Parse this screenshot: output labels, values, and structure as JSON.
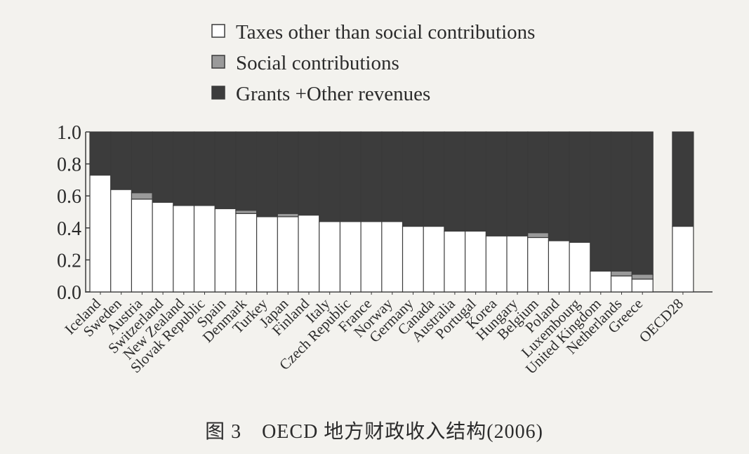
{
  "chart_data": {
    "type": "bar",
    "stacked": true,
    "caption": "图 3　OECD 地方财政收入结构(2006)",
    "ylim": [
      0,
      1.0
    ],
    "yticks": [
      "0.0",
      "0.2",
      "0.4",
      "0.6",
      "0.8",
      "1.0"
    ],
    "colors": {
      "taxes": "#ffffff",
      "social": "#9a9a9a",
      "grants": "#3c3c3c"
    },
    "categories": [
      "Iceland",
      "Sweden",
      "Austria",
      "Switzerland",
      "New Zealand",
      "Slovak Republic",
      "Spain",
      "Denmark",
      "Turkey",
      "Japan",
      "Finland",
      "Italy",
      "Czech Republic",
      "France",
      "Norway",
      "Germany",
      "Canada",
      "Australia",
      "Portugal",
      "Korea",
      "Hungary",
      "Belgium",
      "Poland",
      "Luxembourg",
      "United Kingdom",
      "Netherlands",
      "Greece",
      "OECD28"
    ],
    "series": [
      {
        "name": "Taxes other than social contributions",
        "key": "taxes",
        "values": [
          0.73,
          0.64,
          0.58,
          0.56,
          0.54,
          0.54,
          0.52,
          0.49,
          0.47,
          0.47,
          0.48,
          0.44,
          0.44,
          0.44,
          0.44,
          0.41,
          0.41,
          0.38,
          0.38,
          0.35,
          0.35,
          0.34,
          0.32,
          0.31,
          0.13,
          0.1,
          0.08,
          0.41
        ]
      },
      {
        "name": "Social contributions",
        "key": "social",
        "values": [
          0,
          0,
          0.04,
          0,
          0,
          0,
          0,
          0.02,
          0,
          0.02,
          0,
          0,
          0,
          0,
          0,
          0,
          0,
          0,
          0,
          0,
          0,
          0.03,
          0,
          0,
          0,
          0.03,
          0.03,
          0
        ]
      },
      {
        "name": "Grants +Other revenues",
        "key": "grants",
        "values": [
          0.27,
          0.36,
          0.38,
          0.44,
          0.46,
          0.46,
          0.48,
          0.49,
          0.53,
          0.51,
          0.52,
          0.56,
          0.56,
          0.56,
          0.56,
          0.59,
          0.59,
          0.62,
          0.62,
          0.65,
          0.65,
          0.63,
          0.68,
          0.69,
          0.87,
          0.87,
          0.89,
          0.59
        ]
      }
    ]
  }
}
